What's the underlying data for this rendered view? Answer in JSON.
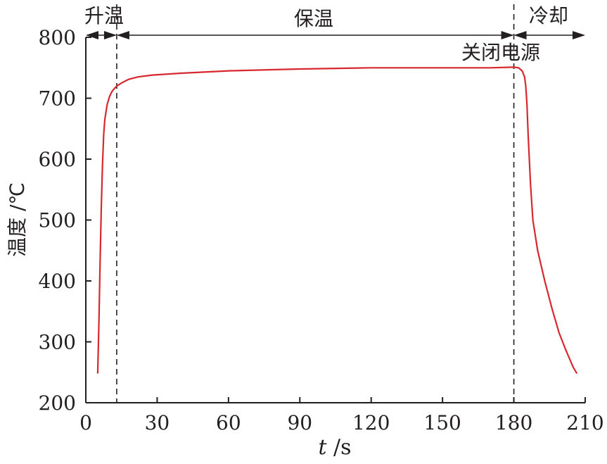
{
  "chart_data": {
    "type": "line",
    "xlabel_var": "t",
    "xlabel_unit": "/s",
    "ylabel": "温度 /℃",
    "xlim": [
      0,
      210
    ],
    "ylim": [
      200,
      800
    ],
    "x_ticks": [
      0,
      30,
      60,
      90,
      120,
      150,
      180,
      210
    ],
    "y_ticks": [
      200,
      300,
      400,
      500,
      600,
      700,
      800
    ],
    "grid": false,
    "line_color": "#d7282f",
    "series": [
      {
        "points": [
          [
            5,
            248
          ],
          [
            5.5,
            330
          ],
          [
            6,
            430
          ],
          [
            6.5,
            520
          ],
          [
            7,
            590
          ],
          [
            7.5,
            640
          ],
          [
            8,
            665
          ],
          [
            9,
            690
          ],
          [
            10,
            703
          ],
          [
            11,
            711
          ],
          [
            12,
            716
          ],
          [
            13,
            720
          ],
          [
            15,
            725
          ],
          [
            18,
            731
          ],
          [
            22,
            735
          ],
          [
            28,
            738
          ],
          [
            40,
            741
          ],
          [
            60,
            745
          ],
          [
            90,
            748
          ],
          [
            120,
            750
          ],
          [
            150,
            750
          ],
          [
            170,
            750
          ],
          [
            180,
            751
          ],
          [
            182,
            750
          ],
          [
            183.5,
            745
          ],
          [
            184.5,
            735
          ],
          [
            185,
            720
          ],
          [
            185.5,
            690
          ],
          [
            186,
            640
          ],
          [
            187,
            560
          ],
          [
            188,
            500
          ],
          [
            190,
            450
          ],
          [
            193,
            400
          ],
          [
            196,
            355
          ],
          [
            199,
            315
          ],
          [
            202,
            285
          ],
          [
            205,
            258
          ],
          [
            206.5,
            248
          ]
        ]
      }
    ],
    "phase_boundaries": [
      13,
      180
    ],
    "phases": [
      {
        "label": "升温",
        "from": 0,
        "to": 13
      },
      {
        "label": "保温",
        "from": 13,
        "to": 180
      },
      {
        "label": "冷却",
        "from": 180,
        "to": 210
      }
    ],
    "annotation": {
      "label": "关闭电源",
      "x": 180,
      "y": 775
    }
  }
}
